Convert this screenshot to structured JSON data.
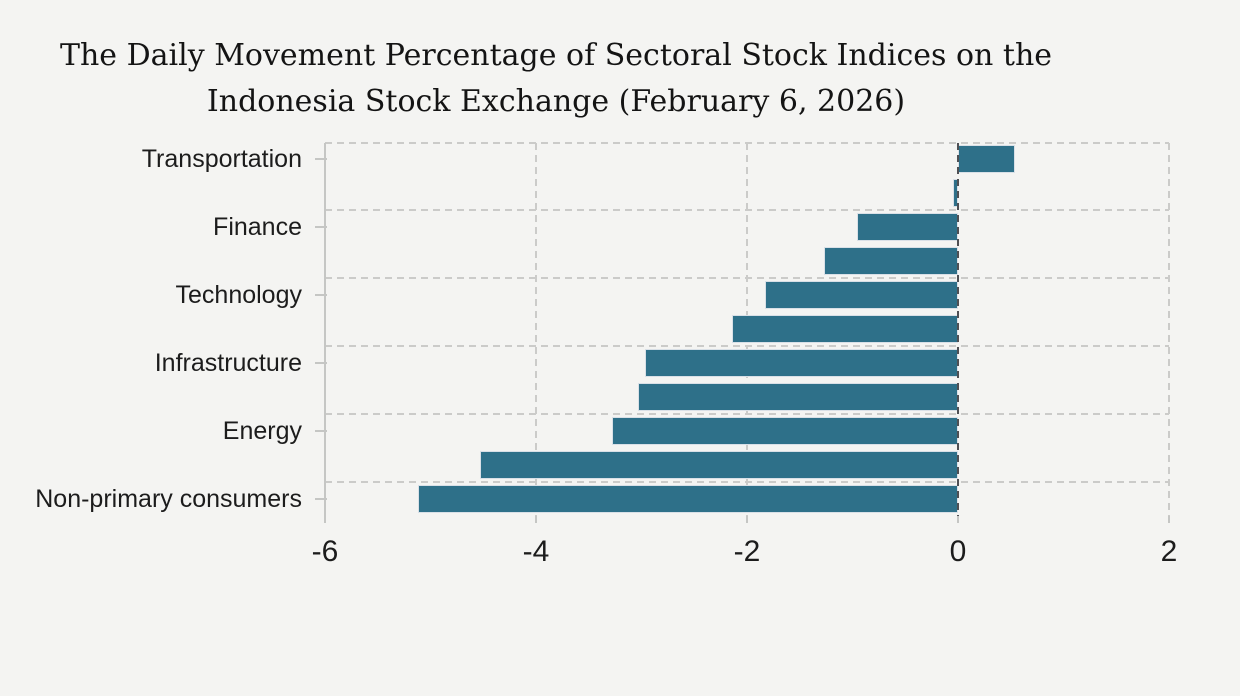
{
  "title": {
    "line1": "The Daily Movement Percentage of Sectoral Stock Indices on the",
    "line2": "Indonesia Stock Exchange (February 6, 2026)"
  },
  "chart_data": {
    "type": "bar",
    "orientation": "horizontal",
    "title": "The Daily Movement Percentage of Sectoral Stock Indices on the Indonesia Stock Exchange (February 6, 2026)",
    "xlabel": "",
    "ylabel": "",
    "xlim": [
      -6,
      2
    ],
    "x_ticks": [
      -6,
      -4,
      -2,
      0,
      2
    ],
    "x_tick_labels": [
      "-6",
      "-4",
      "-2",
      "0",
      "2"
    ],
    "grid": "dashed",
    "legend": "none",
    "categories": [
      "Transportation",
      "",
      "Finance",
      "",
      "Technology",
      "",
      "Infrastructure",
      "",
      "Energy",
      "",
      "Non-primary consumers"
    ],
    "values": [
      0.54,
      -0.05,
      -0.96,
      -1.27,
      -1.83,
      -2.14,
      -2.97,
      -3.03,
      -3.28,
      -4.53,
      -5.12
    ],
    "colors": {
      "bar": "#2e7089",
      "bar_border": "#d9e0e7",
      "background": "#f4f4f2",
      "grid": "#cbcbc9",
      "zero_line": "#4f5054",
      "axis": "#c5c6c4",
      "text": "#1c1c1c"
    }
  }
}
